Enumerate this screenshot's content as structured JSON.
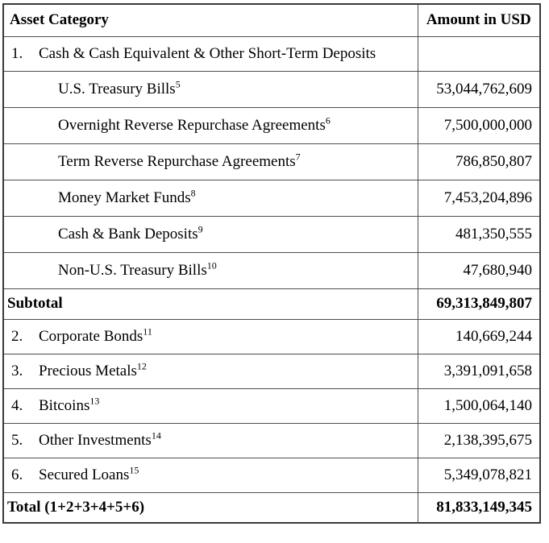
{
  "colors": {
    "background": "#ffffff",
    "text": "#000000",
    "border_outer": "#3a3a3a",
    "border_inner": "#4e4e4e"
  },
  "table": {
    "header": {
      "asset_category": "Asset Category",
      "amount_in_usd": "Amount in USD"
    },
    "rows": [
      {
        "type": "category",
        "number": "1.",
        "label": "Cash & Cash Equivalent & Other Short-Term Deposits",
        "footnote": "",
        "amount": ""
      },
      {
        "type": "sub",
        "number": "",
        "label": "U.S. Treasury Bills",
        "footnote": "5",
        "amount": "53,044,762,609"
      },
      {
        "type": "sub",
        "number": "",
        "label": "Overnight Reverse Repurchase Agreements",
        "footnote": "6",
        "amount": "7,500,000,000"
      },
      {
        "type": "sub",
        "number": "",
        "label": "Term Reverse Repurchase Agreements",
        "footnote": "7",
        "amount": "786,850,807"
      },
      {
        "type": "sub",
        "number": "",
        "label": "Money Market Funds",
        "footnote": "8",
        "amount": "7,453,204,896"
      },
      {
        "type": "sub",
        "number": "",
        "label": "Cash & Bank Deposits",
        "footnote": "9",
        "amount": "481,350,555"
      },
      {
        "type": "sub",
        "number": "",
        "label": "Non-U.S. Treasury Bills",
        "footnote": "10",
        "amount": "47,680,940"
      },
      {
        "type": "summary",
        "number": "",
        "label": "Subtotal",
        "footnote": "",
        "amount": "69,313,849,807"
      },
      {
        "type": "category",
        "number": "2.",
        "label": "Corporate Bonds",
        "footnote": "11",
        "amount": "140,669,244"
      },
      {
        "type": "category",
        "number": "3.",
        "label": "Precious Metals",
        "footnote": "12",
        "amount": "3,391,091,658"
      },
      {
        "type": "category",
        "number": "4.",
        "label": "Bitcoins",
        "footnote": "13",
        "amount": "1,500,064,140"
      },
      {
        "type": "category",
        "number": "5.",
        "label": "Other Investments",
        "footnote": "14",
        "amount": "2,138,395,675"
      },
      {
        "type": "category",
        "number": "6.",
        "label": "Secured Loans",
        "footnote": "15",
        "amount": "5,349,078,821"
      },
      {
        "type": "summary",
        "number": "",
        "label": "Total (1+2+3+4+5+6)",
        "footnote": "",
        "amount": "81,833,149,345"
      }
    ]
  }
}
